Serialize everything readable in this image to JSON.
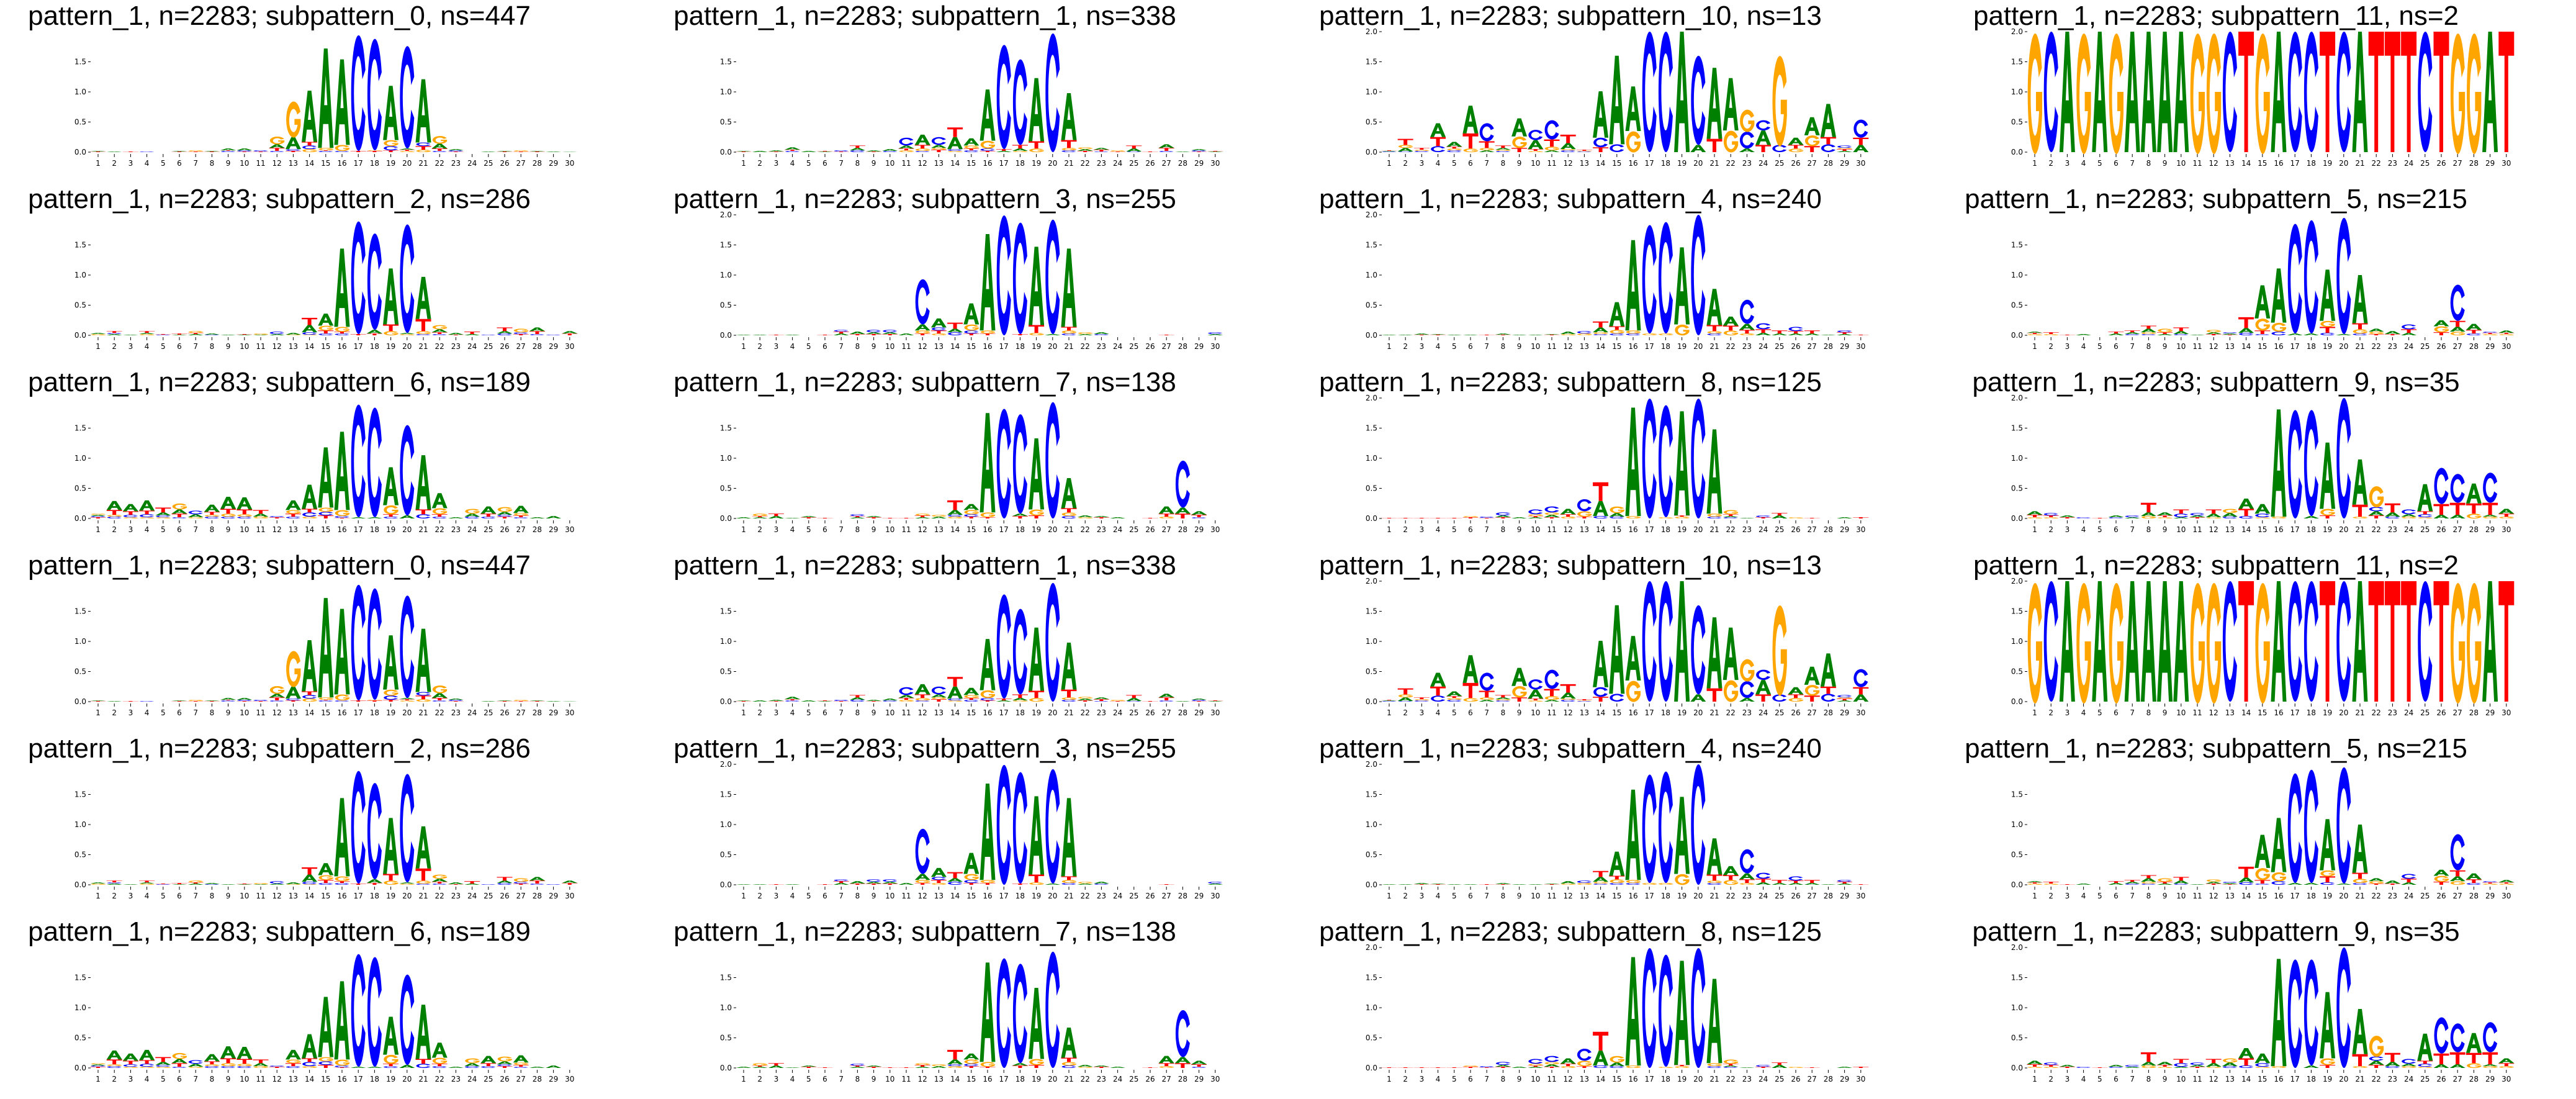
{
  "chart_data": {
    "type": "sequence_logo",
    "x_ticks": [
      1,
      2,
      3,
      4,
      5,
      6,
      7,
      8,
      9,
      10,
      11,
      12,
      13,
      14,
      15,
      16,
      17,
      18,
      19,
      20,
      21,
      22,
      23,
      24,
      25,
      26,
      27,
      28,
      29,
      30
    ],
    "letter_colors": {
      "A": "#008000",
      "C": "#0000ff",
      "G": "#ffa500",
      "T": "#ff0000"
    },
    "logos": {
      "subpattern_0": [
        "T:0.01 A:0.01",
        "A:0.01",
        "T:0.01",
        "C:0.01",
        "",
        "T:0.01 A:0.01",
        "T:0.01 G:0.02",
        "T:0.01 A:0.01",
        "C:0.02 T:0.01 A:0.03",
        "T:0.01 C:0.02 A:0.03",
        "T:0.01 C:0.02",
        "C:0.02 T:0.05 A:0.06 G:0.13",
        "T:0.02 C:0.03 A:0.2 G:0.6",
        "G:0.05 C:0.06 T:0.06 A:0.85",
        "C:0.02 T:0.01 G:0.04 A:1.65",
        "C:0.02 G:0.1 A:1.42",
        "T:0.02 C:1.92",
        "T:0.02 G:0.01 C:1.85",
        "T:0.03 C:0.07 G:0.1 A:0.9",
        "G:0.02 T:0.02 A:0.02 C:1.7",
        "G:0.04 T:0.06 C:0.06 A:1.05",
        "C:0.02 T:0.04 A:0.08 G:0.13",
        "T:0.01 C:0.02 A:0.02",
        "",
        "A:0.01",
        "T:0.01 A:0.01",
        "T:0.01 G:0.02",
        "T:0.01 A:0.01",
        "A:0.01",
        "A:0.005"
      ],
      "subpattern_1": [
        "T:0.01 A:0.01",
        "A:0.02",
        "T:0.01 A:0.02",
        "C:0.02 T:0.02 A:0.04",
        "A:0.02",
        "A:0.01 T:0.01",
        "T:0.01 C:0.02",
        "C:0.03 A:0.04 T:0.04",
        "T:0.01 A:0.02",
        "C:0.02 A:0.03",
        "G:0.03 T:0.03 A:0.05 C:0.13",
        "C:0.02 G:0.04 T:0.06 A:0.17",
        "T:0.04 G:0.03 A:0.05 C:0.13",
        "G:0.02 C:0.03 A:0.2 T:0.16",
        "C:0.03 T:0.03 G:0.05 A:0.12",
        "T:0.02 C:0.04 G:0.13 A:0.85",
        "A:0.02 T:0.03 C:1.73",
        "G:0.02 A:0.04 T:0.06 C:1.42",
        "G:0.06 T:0.12 A:1.05",
        "C:1.97",
        "C:0.03 G:0.04 T:0.13 A:0.78",
        "T:0.02 A:0.03 G:0.03",
        "C:0.01 T:0.03 A:0.03",
        "T:0.01 G:0.02",
        "C:0.01 A:0.05 T:0.05",
        "T:0.01",
        "C:0.02 T:0.05 A:0.06",
        "A:0.01",
        "T:0.01 C:0.02 A:0.02",
        "A:0.01 T:0.01"
      ],
      "subpattern_10": [
        "C:0.01 A:0.01 T:0.01",
        "C:0.01 A:0.06 G:0.05 T:0.1",
        "C:0.02 G:0.02 T:0.03",
        "C:0.1 T:0.15 A:0.23",
        "C:0.03 G:0.03 T:0.03 A:0.08",
        "G:0.06 T:0.25 A:0.46",
        "A:0.03 G:0.04 T:0.11 C:0.3",
        "C:0.02 G:0.02 A:0.03 T:0.04",
        "T:0.07 G:0.19 A:0.3",
        "G:0.02 T:0.03 A:0.15 C:0.17",
        "A:0.03 G:0.06 T:0.12 C:0.32",
        "C:0.03 G:0.02 A:0.1 T:0.14",
        "C:0.01 G:0.01 T:0.02",
        "T:0.08 C:0.16 A:0.77",
        "C:0.13 A:1.47",
        "G:0.35 A:0.74",
        "C:2.0",
        "C:2.0",
        "A:2.0",
        "A:0.12 C:1.48",
        "T:0.22 A:1.18",
        "G:0.36 A:0.87",
        "A:0.06 C:0.28 G:0.37",
        "T:0.12 A:0.24 C:0.17",
        "C:0.12 G:1.5",
        "G:0.06 T:0.06 A:0.12",
        "T:0.1 G:0.18 A:0.3",
        "C:0.13 T:0.12 A:0.55",
        "A:0.02 T:0.03 G:0.02 C:0.04",
        "A:0.12 T:0.12 C:0.3"
      ],
      "subpattern_11": [
        "G:2.0",
        "C:2.0",
        "A:2.0",
        "G:2.0",
        "A:2.0",
        "G:2.0",
        "A:2.0",
        "A:2.0",
        "A:2.0",
        "A:2.0",
        "G:2.0",
        "G:2.0",
        "C:2.0",
        "T:2.0",
        "G:2.0",
        "A:2.0",
        "C:2.0",
        "C:2.0",
        "T:2.0",
        "C:2.0",
        "A:2.0",
        "T:2.0",
        "T:2.0",
        "T:2.0",
        "C:2.0",
        "T:2.0",
        "G:2.0",
        "G:2.0",
        "A:2.0",
        "T:2.0"
      ],
      "subpattern_2": [
        "G:0.02 A:0.02",
        "A:0.02 C:0.02 T:0.03",
        "A:0.01",
        "G:0.02 A:0.02 T:0.03",
        "C:0.01 T:0.01",
        "A:0.01 T:0.02",
        "A:0.02 T:0.02 G:0.03",
        "C:0.01 A:0.02",
        "A:0.01",
        "A:0.01 T:0.01",
        "A:0.01 G:0.02",
        "A:0.02 C:0.04",
        "G:0.01 A:0.03",
        "G:0.01 C:0.04 A:0.12 T:0.12",
        "C:0.03 T:0.05 G:0.08 A:0.2",
        "C:0.03 T:0.03 G:0.08 A:1.3",
        "T:0.02 C:1.87",
        "T:0.03 A:0.06 C:1.6",
        "G:0.07 T:0.11 A:0.93",
        "G:0.02 A:0.02 C:1.8",
        "C:0.02 G:0.05 T:0.2 A:0.7",
        "C:0.02 T:0.03 A:0.05 G:0.07",
        "T:0.01 A:0.03",
        "A:0.02 T:0.04",
        "C:0.01",
        "C:0.03 A:0.04 T:0.06",
        "T:0.02 C:0.03 G:0.06",
        "C:0.02 T:0.05 A:0.06",
        "C:0.01",
        "T:0.03 A:0.04"
      ],
      "subpattern_3": [
        "A:0.01",
        "A:0.01",
        "T:0.01",
        "A:0.01",
        "",
        "T:0.01",
        "A:0.03 T:0.03 C:0.03",
        "T:0.02 A:0.04",
        "T:0.02 A:0.03 C:0.04",
        "T:0.02 A:0.03 C:0.04",
        "A:0.03",
        "T:0.03 G:0.05 A:0.1 C:0.75",
        "G:0.03 T:0.05 C:0.05 A:0.15",
        "C:0.05 A:0.06 T:0.1",
        "T:0.03 C:0.05 G:0.1 A:0.35",
        "T:0.03 G:0.05 A:1.6",
        "C:1.99",
        "T:0.02 C:1.85",
        "G:0.04 T:0.13 A:1.3",
        "A:0.02 C:1.9",
        "C:0.03 G:0.05 T:0.06 A:1.3",
        "A:0.02 G:0.03",
        "C:0.02 A:0.03",
        "",
        "",
        "",
        "T:0.01",
        "",
        "",
        "A:0.02 C:0.03"
      ],
      "subpattern_4": [
        "A:0.01",
        "A:0.01",
        "T:0.01 A:0.02",
        "T:0.01 A:0.01",
        "A:0.01",
        "A:0.01",
        "T:0.01",
        "T:0.01 A:0.02",
        "A:0.01",
        "A:0.01",
        "T:0.01 A:0.01",
        "G:0.02 A:0.04",
        "G:0.03 C:0.04",
        "C:0.02 G:0.03 A:0.08 T:0.1",
        "C:0.03 G:0.06 T:0.06 A:0.4",
        "C:0.03 G:0.05 A:1.5",
        "G:0.03 C:1.8",
        "G:0.03 C:1.85",
        "G:0.18 A:1.28",
        "C:2.0",
        "C:0.03 G:0.04 T:0.1 A:0.6",
        "G:0.08 T:0.08 A:0.15",
        "G:0.03 T:0.06 A:0.1 C:0.4",
        "A:0.04 T:0.06 C:0.1",
        "A:0.03 T:0.05",
        "A:0.03 T:0.04 C:0.07",
        "A:0.03 T:0.05",
        "A:0.01",
        "A:0.02 T:0.03 C:0.03",
        "T:0.01"
      ],
      "subpattern_5": [
        "G:0.02 T:0.02 A:0.02",
        "G:0.02 T:0.03",
        "T:0.01",
        "A:0.02",
        "",
        "A:0.03 T:0.03",
        "C:0.02 A:0.03 T:0.03",
        "C:0.02 G:0.03 A:0.06 T:0.05",
        "A:0.02 T:0.03 G:0.06",
        "C:0.02 A:0.05 T:0.06",
        "A:0.01",
        "T:0.02 A:0.03 G:0.04",
        "T:0.01 A:0.02 C:0.02",
        "C:0.04 A:0.08 T:0.18",
        "C:0.02 T:0.06 G:0.2 A:0.55",
        "C:0.06 G:0.15 A:0.9",
        "A:0.03 C:1.82",
        "A:0.03 C:1.88",
        "C:0.04 T:0.1 G:0.1 A:0.85",
        "A:0.02 C:1.93",
        "C:0.03 G:0.07 T:0.1 A:0.8",
        "T:0.02 G:0.04 A:0.05",
        "T:0.02 A:0.05",
        "A:0.04 T:0.06 C:0.08",
        "",
        "T:0.05 G:0.1 A:0.1",
        "G:0.06 A:0.08 T:0.1 C:0.6",
        "C:0.03 T:0.06 A:0.1",
        "G:0.02 T:0.02 C:0.02",
        "G:0.02 T:0.02 A:0.04"
      ],
      "subpattern_6": [
        "T:0.02 C:0.02 A:0.02 G:0.02",
        "C:0.03 G:0.03 T:0.08 A:0.15",
        "G:0.02 C:0.04 T:0.06 A:0.12",
        "G:0.02 C:0.05 T:0.06 A:0.17",
        "G:0.02 C:0.03 A:0.05 T:0.08",
        "C:0.02 T:0.06 A:0.07 G:0.1",
        "G:0.02 A:0.05 C:0.06",
        "C:0.03 G:0.03 T:0.05 A:0.12",
        "C:0.03 G:0.05 T:0.08 A:0.2",
        "C:0.03 G:0.04 T:0.08 A:0.2",
        "G:0.03 A:0.05 T:0.06",
        "T:0.02 C:0.02",
        "C:0.03 T:0.05 G:0.06 A:0.16",
        "G:0.03 C:0.07 T:0.06 A:0.4",
        "T:0.05 C:0.06 G:0.07 A:1.0",
        "T:0.01 C:0.03 G:0.1 A:1.3",
        "A:0.02 C:1.87",
        "A:0.02 C:1.82",
        "C:0.03 T:0.04 G:0.15 A:0.63",
        "A:0.05 C:1.5",
        "C:0.07 T:0.08 A:0.9",
        "C:0.03 T:0.04 G:0.1 A:0.25",
        "A:0.02",
        "C:0.03 A:0.05 G:0.08",
        "C:0.03 T:0.05 A:0.12",
        "T:0.03 C:0.03 A:0.05 G:0.08",
        "C:0.02 T:0.03 G:0.04 A:0.12",
        "A:0.02",
        "A:0.04",
        ""
      ],
      "subpattern_7": [
        "A:0.02",
        "A:0.02 T:0.02 G:0.04",
        "A:0.04 T:0.04",
        "A:0.01",
        "T:0.02 A:0.02",
        "T:0.01",
        "",
        "A:0.02 T:0.02 C:0.03",
        "T:0.02 A:0.02",
        "T:0.01",
        "T:0.01",
        "A:0.02 T:0.03 G:0.03",
        "A:0.03 G:0.03",
        "G:0.03 C:0.03 A:0.08 T:0.16",
        "T:0.03 C:0.04 G:0.07 A:0.1",
        "T:0.02 G:0.08 A:1.65",
        "C:1.82",
        "T:0.04 A:0.04 C:1.65",
        "T:0.05 G:0.1 A:1.18",
        "C:1.93",
        "C:0.04 G:0.06 T:0.07 A:0.5",
        "G:0.02 A:0.03",
        "T:0.02 A:0.02",
        "A:0.02",
        "",
        "T:0.01",
        "G:0.03 T:0.05 A:0.12",
        "T:0.08 A:0.1 C:0.78",
        "C:0.02 T:0.04 A:0.06",
        ""
      ],
      "subpattern_8": [
        "T:0.01",
        "T:0.01",
        "T:0.01",
        "T:0.01",
        "T:0.01",
        "T:0.02 G:0.02",
        "T:0.01 C:0.02",
        "T:0.02 A:0.03 C:0.05",
        "A:0.02",
        "A:0.02 T:0.02 G:0.03 C:0.08",
        "T:0.02 A:0.04 G:0.04 C:0.1",
        "G:0.03 T:0.04 A:0.09",
        "T:0.03 G:0.09 C:0.2",
        "C:0.04 A:0.25 T:0.31",
        "C:0.03 A:0.06 G:0.11",
        "G:0.04 A:1.8",
        "C:1.99",
        "G:0.02 C:1.86",
        "G:0.03 T:0.02 A:1.73",
        "C:1.99",
        "C:0.03 G:0.05 A:1.4",
        "C:0.02 A:0.02 T:0.03 G:0.07",
        "A:0.01",
        "T:0.02 C:0.03",
        "A:0.05 T:0.04",
        "G:0.02",
        "T:0.01",
        "",
        "A:0.02",
        "T:0.02"
      ],
      "subpattern_9": [
        "G:0.02 T:0.04 A:0.06",
        "G:0.02 T:0.03 C:0.04",
        "T:0.02 A:0.03",
        "C:0.02",
        "T:0.01",
        "C:0.02 A:0.03",
        "A:0.02 C:0.03",
        "G:0.04 A:0.06 T:0.16",
        "G:0.02 T:0.03 A:0.05",
        "A:0.02 C:0.06 T:0.07",
        "T:0.02 A:0.03 C:0.04",
        "G:0.02 A:0.06 T:0.07",
        "C:0.03 A:0.06 G:0.07",
        "C:0.04 T:0.12 A:0.17",
        "G:0.02 C:0.06 A:0.16",
        "G:0.03 A:1.78",
        "C:1.8",
        "A:0.04 C:1.76",
        "T:0.05 G:0.11 A:1.1",
        "C:2.0",
        "G:0.03 T:0.2 A:0.75",
        "T:0.05 A:0.07 C:0.07 G:0.35",
        "C:0.03 A:0.07 T:0.15",
        "G:0.03 A:0.04 C:0.08",
        "G:0.02 C:0.05 T:0.05 A:0.45",
        "A:0.06 T:0.18 C:0.6",
        "A:0.06 T:0.2 C:0.48",
        "G:0.08 T:0.17 A:0.33",
        "G:0.03 A:0.03 T:0.2 C:0.5",
        "G:0.03 T:0.05 A:0.08"
      ]
    },
    "panels": [
      {
        "title": "pattern_1, n=2283; subpattern_0, ns=447",
        "logo": "subpattern_0",
        "y_ticks": [
          "0.0",
          "0.5",
          "1.0",
          "1.5"
        ]
      },
      {
        "title": "pattern_1, n=2283; subpattern_1, ns=338",
        "logo": "subpattern_1",
        "y_ticks": [
          "0.0",
          "0.5",
          "1.0",
          "1.5"
        ]
      },
      {
        "title": "pattern_1, n=2283; subpattern_10, ns=13",
        "logo": "subpattern_10",
        "y_ticks": [
          "0.0",
          "0.5",
          "1.0",
          "1.5",
          "2.0"
        ]
      },
      {
        "title": "pattern_1, n=2283; subpattern_11, ns=2",
        "logo": "subpattern_11",
        "y_ticks": [
          "0.0",
          "0.5",
          "1.0",
          "1.5",
          "2.0"
        ]
      },
      {
        "title": "pattern_1, n=2283; subpattern_2, ns=286",
        "logo": "subpattern_2",
        "y_ticks": [
          "0.0",
          "0.5",
          "1.0",
          "1.5"
        ]
      },
      {
        "title": "pattern_1, n=2283; subpattern_3, ns=255",
        "logo": "subpattern_3",
        "y_ticks": [
          "0.0",
          "0.5",
          "1.0",
          "1.5",
          "2.0"
        ]
      },
      {
        "title": "pattern_1, n=2283; subpattern_4, ns=240",
        "logo": "subpattern_4",
        "y_ticks": [
          "0.0",
          "0.5",
          "1.0",
          "1.5",
          "2.0"
        ]
      },
      {
        "title": "pattern_1, n=2283; subpattern_5, ns=215",
        "logo": "subpattern_5",
        "y_ticks": [
          "0.0",
          "0.5",
          "1.0",
          "1.5"
        ]
      },
      {
        "title": "pattern_1, n=2283; subpattern_6, ns=189",
        "logo": "subpattern_6",
        "y_ticks": [
          "0.0",
          "0.5",
          "1.0",
          "1.5"
        ]
      },
      {
        "title": "pattern_1, n=2283; subpattern_7, ns=138",
        "logo": "subpattern_7",
        "y_ticks": [
          "0.0",
          "0.5",
          "1.0",
          "1.5"
        ]
      },
      {
        "title": "pattern_1, n=2283; subpattern_8, ns=125",
        "logo": "subpattern_8",
        "y_ticks": [
          "0.0",
          "0.5",
          "1.0",
          "1.5",
          "2.0"
        ]
      },
      {
        "title": "pattern_1, n=2283; subpattern_9, ns=35",
        "logo": "subpattern_9",
        "y_ticks": [
          "0.0",
          "0.5",
          "1.0",
          "1.5",
          "2.0"
        ]
      },
      {
        "title": "pattern_1, n=2283; subpattern_0, ns=447",
        "logo": "subpattern_0",
        "y_ticks": [
          "0.0",
          "0.5",
          "1.0",
          "1.5"
        ]
      },
      {
        "title": "pattern_1, n=2283; subpattern_1, ns=338",
        "logo": "subpattern_1",
        "y_ticks": [
          "0.0",
          "0.5",
          "1.0",
          "1.5"
        ]
      },
      {
        "title": "pattern_1, n=2283; subpattern_10, ns=13",
        "logo": "subpattern_10",
        "y_ticks": [
          "0.0",
          "0.5",
          "1.0",
          "1.5",
          "2.0"
        ]
      },
      {
        "title": "pattern_1, n=2283; subpattern_11, ns=2",
        "logo": "subpattern_11",
        "y_ticks": [
          "0.0",
          "0.5",
          "1.0",
          "1.5",
          "2.0"
        ]
      },
      {
        "title": "pattern_1, n=2283; subpattern_2, ns=286",
        "logo": "subpattern_2",
        "y_ticks": [
          "0.0",
          "0.5",
          "1.0",
          "1.5"
        ]
      },
      {
        "title": "pattern_1, n=2283; subpattern_3, ns=255",
        "logo": "subpattern_3",
        "y_ticks": [
          "0.0",
          "0.5",
          "1.0",
          "1.5",
          "2.0"
        ]
      },
      {
        "title": "pattern_1, n=2283; subpattern_4, ns=240",
        "logo": "subpattern_4",
        "y_ticks": [
          "0.0",
          "0.5",
          "1.0",
          "1.5",
          "2.0"
        ]
      },
      {
        "title": "pattern_1, n=2283; subpattern_5, ns=215",
        "logo": "subpattern_5",
        "y_ticks": [
          "0.0",
          "0.5",
          "1.0",
          "1.5"
        ]
      },
      {
        "title": "pattern_1, n=2283; subpattern_6, ns=189",
        "logo": "subpattern_6",
        "y_ticks": [
          "0.0",
          "0.5",
          "1.0",
          "1.5"
        ]
      },
      {
        "title": "pattern_1, n=2283; subpattern_7, ns=138",
        "logo": "subpattern_7",
        "y_ticks": [
          "0.0",
          "0.5",
          "1.0",
          "1.5"
        ]
      },
      {
        "title": "pattern_1, n=2283; subpattern_8, ns=125",
        "logo": "subpattern_8",
        "y_ticks": [
          "0.0",
          "0.5",
          "1.0",
          "1.5",
          "2.0"
        ]
      },
      {
        "title": "pattern_1, n=2283; subpattern_9, ns=35",
        "logo": "subpattern_9",
        "y_ticks": [
          "0.0",
          "0.5",
          "1.0",
          "1.5",
          "2.0"
        ]
      }
    ]
  }
}
